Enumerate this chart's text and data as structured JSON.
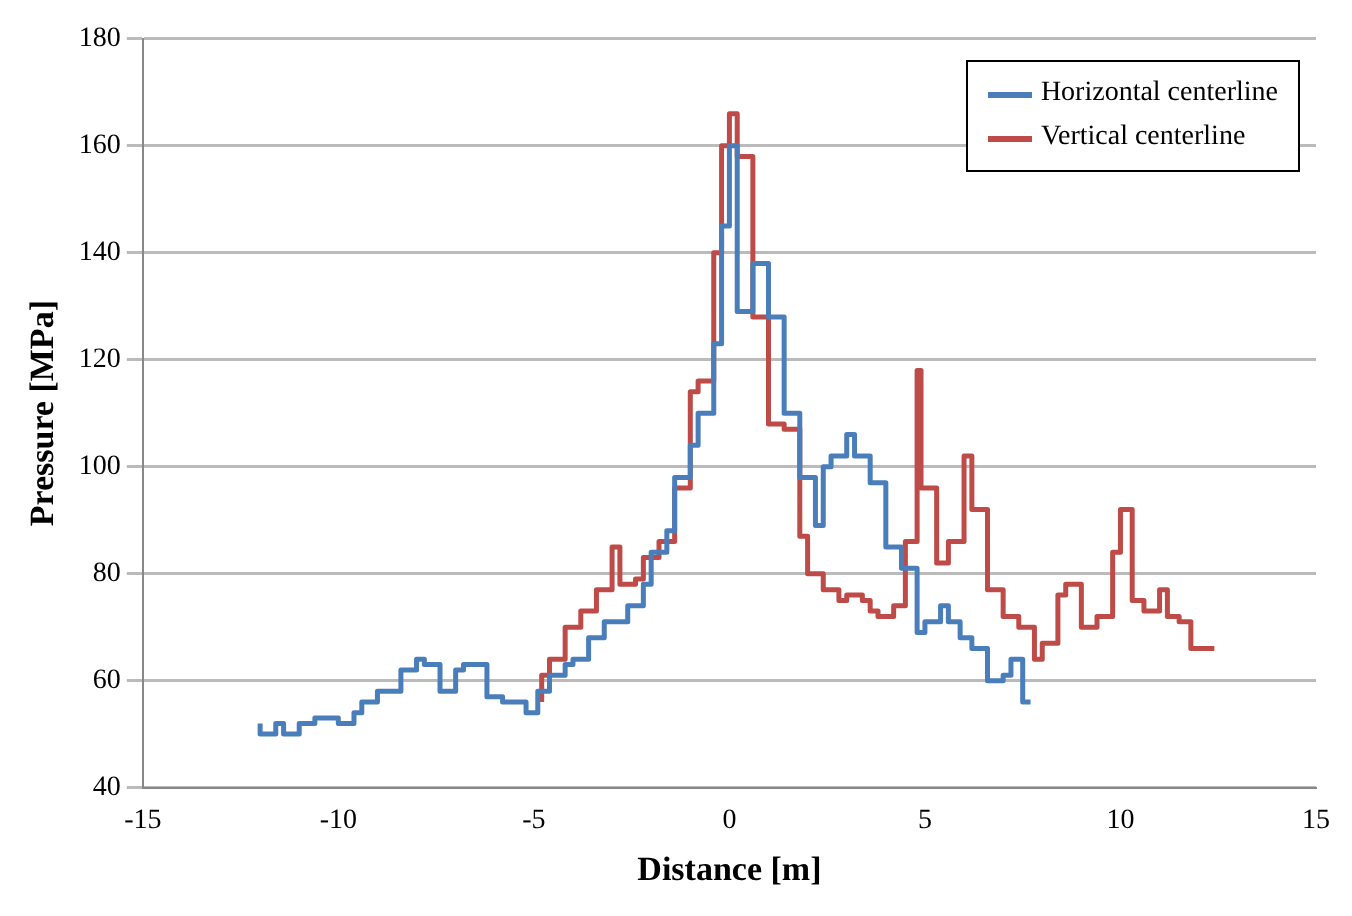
{
  "chart_data": {
    "type": "step",
    "xlabel": "Distance [m]",
    "ylabel": "Pressure [MPa]",
    "xlim": [
      -15,
      15
    ],
    "xticks": [
      -15,
      -10,
      -5,
      0,
      5,
      10,
      15
    ],
    "ylim": [
      40,
      180
    ],
    "yticks": [
      40,
      60,
      80,
      100,
      120,
      140,
      160,
      180
    ],
    "grid": "y",
    "legend": "top right",
    "marker": "none",
    "series": [
      {
        "name": "Horizontal centerline",
        "color": "#4a7ebb",
        "x": [
          -12,
          -11.6,
          -11.4,
          -11,
          -10.6,
          -10,
          -9.6,
          -9.4,
          -9,
          -8.4,
          -8,
          -7.8,
          -7.4,
          -7,
          -6.8,
          -6.2,
          -5.8,
          -5.2,
          -4.9,
          -4.6,
          -4.2,
          -4,
          -3.6,
          -3.2,
          -2.6,
          -2.2,
          -2,
          -1.6,
          -1.4,
          -1,
          -0.8,
          -0.4,
          -0.2,
          0,
          0.2,
          0.6,
          1,
          1.4,
          1.8,
          2.2,
          2.4,
          2.6,
          3,
          3.2,
          3.6,
          4,
          4.4,
          4.8,
          5,
          5.4,
          5.6,
          5.9,
          6.2,
          6.6,
          7,
          7.2,
          7.5,
          7.7
        ],
        "values": [
          52,
          50,
          52,
          50,
          52,
          53,
          52,
          54,
          56,
          58,
          62,
          64,
          63,
          58,
          62,
          63,
          57,
          56,
          54,
          58,
          61,
          63,
          64,
          68,
          71,
          74,
          78,
          84,
          88,
          98,
          104,
          110,
          123,
          145,
          160,
          129,
          138,
          128,
          110,
          98,
          89,
          100,
          102,
          106,
          102,
          97,
          85,
          81,
          69,
          71,
          74,
          71,
          68,
          66,
          60,
          61,
          64,
          56
        ]
      },
      {
        "name": "Vertical centerline",
        "color": "#be4b48",
        "x": [
          -4.8,
          -4.6,
          -4.2,
          -3.8,
          -3.4,
          -3,
          -2.8,
          -2.4,
          -2.2,
          -1.8,
          -1.4,
          -1,
          -0.8,
          -0.4,
          -0.2,
          0,
          0.2,
          0.6,
          1,
          1.4,
          1.8,
          2,
          2.4,
          2.8,
          3,
          3.4,
          3.6,
          3.8,
          4.2,
          4.5,
          4.8,
          4.9,
          5.3,
          5.6,
          6,
          6.2,
          6.6,
          7,
          7.4,
          7.8,
          8,
          8.4,
          8.6,
          9,
          9.4,
          9.8,
          10,
          10.3,
          10.6,
          11,
          11.2,
          11.5,
          11.8,
          12,
          12.4
        ],
        "values": [
          56,
          61,
          64,
          70,
          73,
          77,
          85,
          78,
          79,
          83,
          86,
          96,
          114,
          116,
          140,
          160,
          166,
          158,
          128,
          108,
          107,
          87,
          80,
          77,
          75,
          76,
          75,
          73,
          72,
          74,
          86,
          118,
          96,
          82,
          86,
          102,
          92,
          77,
          72,
          70,
          64,
          67,
          76,
          78,
          70,
          72,
          84,
          92,
          75,
          73,
          77,
          72,
          71,
          66,
          66
        ]
      }
    ]
  }
}
